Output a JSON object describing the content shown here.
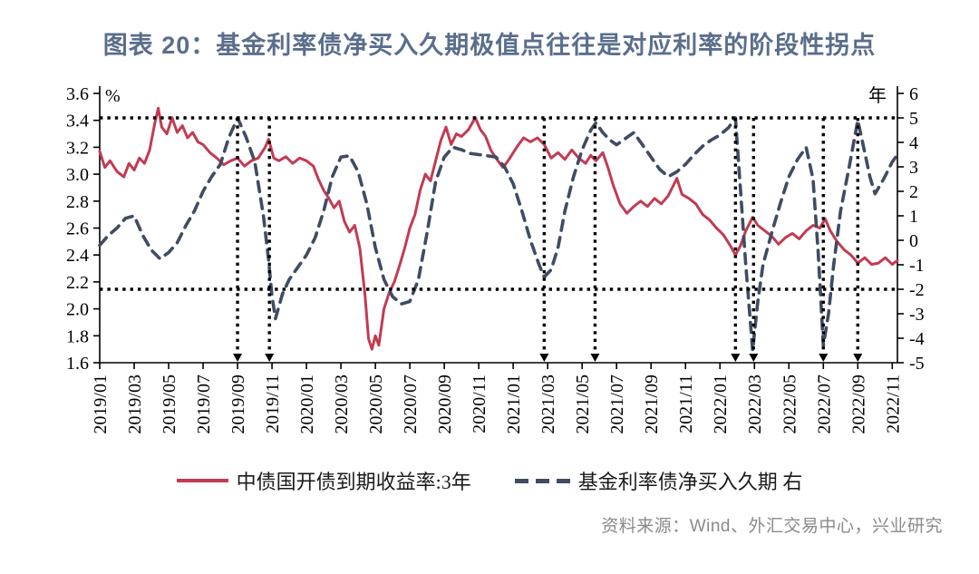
{
  "title": "图表 20：基金利率债净买入久期极值点往往是对应利率的阶段性拐点",
  "source": "资料来源：Wind、外汇交易中心，兴业研究",
  "colors": {
    "title": "#5a6e8c",
    "red_line": "#c23b52",
    "dashed_line": "#3f4c63",
    "dotted_black": "#000000",
    "axis": "#000000",
    "source_text": "#8a8a8a",
    "background": "#ffffff"
  },
  "legend": [
    {
      "label": "中债国开债到期收益率:3年",
      "style": "solid"
    },
    {
      "label": "基金利率债净买入久期 右",
      "style": "dashed"
    }
  ],
  "chart_data": {
    "type": "line",
    "left_axis": {
      "unit": "%",
      "min": 1.6,
      "max": 3.6,
      "step": 0.2,
      "ticks": [
        "3.6",
        "3.4",
        "3.2",
        "3.0",
        "2.8",
        "2.6",
        "2.4",
        "2.2",
        "2.0",
        "1.8",
        "1.6"
      ]
    },
    "right_axis": {
      "unit": "年",
      "min": -5,
      "max": 6,
      "step": 1,
      "ticks": [
        "6",
        "5",
        "4",
        "3",
        "2",
        "1",
        "0",
        "-1",
        "-2",
        "-3",
        "-4",
        "-5"
      ]
    },
    "x_tick_labels": [
      "2019/01",
      "2019/03",
      "2019/05",
      "2019/07",
      "2019/09",
      "2019/11",
      "2020/01",
      "2020/03",
      "2020/05",
      "2020/07",
      "2020/09",
      "2020/11",
      "2021/01",
      "2021/03",
      "2021/05",
      "2021/07",
      "2021/09",
      "2021/11",
      "2022/01",
      "2022/03",
      "2022/05",
      "2022/07",
      "2022/09",
      "2022/11"
    ],
    "x_tick_month_step": 2,
    "threshold_lines_right_axis": [
      5,
      -2
    ],
    "event_line_dates": [
      "2019/09",
      "2019/11",
      "2021/03",
      "2021/06",
      "2022/02",
      "2022/03",
      "2022/07",
      "2022/09"
    ],
    "event_line_months": [
      8.0,
      9.85,
      25.8,
      28.75,
      36.9,
      37.95,
      42.0,
      44.0
    ],
    "series": [
      {
        "name": "中债国开债到期收益率:3年",
        "axis": "left",
        "style": "solid",
        "color": "#c23b52",
        "points": [
          [
            0,
            3.17
          ],
          [
            0.3,
            3.05
          ],
          [
            0.6,
            3.1
          ],
          [
            1,
            3.02
          ],
          [
            1.4,
            2.98
          ],
          [
            1.7,
            3.08
          ],
          [
            2,
            3.03
          ],
          [
            2.3,
            3.12
          ],
          [
            2.6,
            3.08
          ],
          [
            2.9,
            3.18
          ],
          [
            3.2,
            3.38
          ],
          [
            3.4,
            3.49
          ],
          [
            3.6,
            3.35
          ],
          [
            3.9,
            3.3
          ],
          [
            4.2,
            3.42
          ],
          [
            4.5,
            3.31
          ],
          [
            4.8,
            3.36
          ],
          [
            5.1,
            3.27
          ],
          [
            5.4,
            3.31
          ],
          [
            5.7,
            3.24
          ],
          [
            6,
            3.22
          ],
          [
            6.4,
            3.16
          ],
          [
            6.8,
            3.12
          ],
          [
            7.2,
            3.07
          ],
          [
            7.6,
            3.1
          ],
          [
            8,
            3.12
          ],
          [
            8.4,
            3.06
          ],
          [
            8.8,
            3.1
          ],
          [
            9.2,
            3.12
          ],
          [
            9.6,
            3.2
          ],
          [
            9.8,
            3.26
          ],
          [
            10.1,
            3.12
          ],
          [
            10.4,
            3.1
          ],
          [
            10.8,
            3.13
          ],
          [
            11.2,
            3.08
          ],
          [
            11.6,
            3.12
          ],
          [
            12,
            3.1
          ],
          [
            12.4,
            3.06
          ],
          [
            12.7,
            2.96
          ],
          [
            13,
            2.88
          ],
          [
            13.3,
            2.82
          ],
          [
            13.6,
            2.75
          ],
          [
            13.9,
            2.8
          ],
          [
            14.2,
            2.65
          ],
          [
            14.5,
            2.57
          ],
          [
            14.8,
            2.62
          ],
          [
            15.1,
            2.45
          ],
          [
            15.4,
            2.1
          ],
          [
            15.6,
            1.78
          ],
          [
            15.8,
            1.7
          ],
          [
            16,
            1.8
          ],
          [
            16.2,
            1.73
          ],
          [
            16.5,
            2.0
          ],
          [
            16.8,
            2.12
          ],
          [
            17.1,
            2.2
          ],
          [
            17.4,
            2.32
          ],
          [
            17.7,
            2.45
          ],
          [
            18,
            2.6
          ],
          [
            18.3,
            2.7
          ],
          [
            18.6,
            2.88
          ],
          [
            18.9,
            3.0
          ],
          [
            19.2,
            2.95
          ],
          [
            19.5,
            3.1
          ],
          [
            19.8,
            3.25
          ],
          [
            20.1,
            3.35
          ],
          [
            20.4,
            3.22
          ],
          [
            20.7,
            3.3
          ],
          [
            21,
            3.28
          ],
          [
            21.4,
            3.33
          ],
          [
            21.8,
            3.42
          ],
          [
            22.1,
            3.33
          ],
          [
            22.4,
            3.28
          ],
          [
            22.7,
            3.18
          ],
          [
            23,
            3.12
          ],
          [
            23.4,
            3.05
          ],
          [
            23.7,
            3.1
          ],
          [
            24.2,
            3.2
          ],
          [
            24.6,
            3.27
          ],
          [
            25,
            3.24
          ],
          [
            25.4,
            3.27
          ],
          [
            25.8,
            3.22
          ],
          [
            26.2,
            3.12
          ],
          [
            26.6,
            3.16
          ],
          [
            27,
            3.11
          ],
          [
            27.4,
            3.18
          ],
          [
            27.8,
            3.12
          ],
          [
            28.2,
            3.08
          ],
          [
            28.5,
            3.14
          ],
          [
            28.8,
            3.1
          ],
          [
            29.2,
            3.16
          ],
          [
            29.5,
            3.05
          ],
          [
            29.8,
            2.92
          ],
          [
            30.2,
            2.78
          ],
          [
            30.6,
            2.71
          ],
          [
            31,
            2.76
          ],
          [
            31.4,
            2.8
          ],
          [
            31.8,
            2.76
          ],
          [
            32.2,
            2.82
          ],
          [
            32.6,
            2.78
          ],
          [
            33,
            2.84
          ],
          [
            33.5,
            2.97
          ],
          [
            33.8,
            2.85
          ],
          [
            34.2,
            2.82
          ],
          [
            34.6,
            2.78
          ],
          [
            35,
            2.7
          ],
          [
            35.4,
            2.66
          ],
          [
            35.8,
            2.6
          ],
          [
            36.2,
            2.55
          ],
          [
            36.6,
            2.47
          ],
          [
            36.9,
            2.4
          ],
          [
            37.2,
            2.47
          ],
          [
            37.5,
            2.58
          ],
          [
            37.9,
            2.68
          ],
          [
            38.2,
            2.62
          ],
          [
            38.6,
            2.58
          ],
          [
            39,
            2.54
          ],
          [
            39.4,
            2.48
          ],
          [
            39.8,
            2.53
          ],
          [
            40.2,
            2.56
          ],
          [
            40.6,
            2.52
          ],
          [
            41,
            2.58
          ],
          [
            41.4,
            2.62
          ],
          [
            41.8,
            2.6
          ],
          [
            42.1,
            2.67
          ],
          [
            42.4,
            2.58
          ],
          [
            42.8,
            2.5
          ],
          [
            43.2,
            2.44
          ],
          [
            43.6,
            2.4
          ],
          [
            44,
            2.34
          ],
          [
            44.4,
            2.38
          ],
          [
            44.8,
            2.33
          ],
          [
            45.2,
            2.34
          ],
          [
            45.6,
            2.38
          ],
          [
            46,
            2.33
          ],
          [
            46.3,
            2.36
          ]
        ]
      },
      {
        "name": "基金利率债净买入久期 右",
        "axis": "right",
        "style": "dashed",
        "color": "#3f4c63",
        "points": [
          [
            0,
            -0.2
          ],
          [
            0.5,
            0.2
          ],
          [
            1,
            0.5
          ],
          [
            1.5,
            0.9
          ],
          [
            2,
            1.0
          ],
          [
            2.5,
            0.2
          ],
          [
            3,
            -0.4
          ],
          [
            3.5,
            -0.75
          ],
          [
            4,
            -0.5
          ],
          [
            4.5,
            -0.1
          ],
          [
            5,
            0.6
          ],
          [
            5.5,
            1.2
          ],
          [
            6,
            2.0
          ],
          [
            6.5,
            2.6
          ],
          [
            7,
            3.1
          ],
          [
            7.5,
            4.2
          ],
          [
            8,
            5.0
          ],
          [
            8.5,
            4.2
          ],
          [
            9,
            3.2
          ],
          [
            9.5,
            1.0
          ],
          [
            9.8,
            -0.8
          ],
          [
            10,
            -2.3
          ],
          [
            10.2,
            -3.2
          ],
          [
            10.6,
            -2.2
          ],
          [
            11,
            -1.6
          ],
          [
            11.5,
            -1.1
          ],
          [
            12,
            -0.6
          ],
          [
            12.5,
            0.1
          ],
          [
            13,
            1.2
          ],
          [
            13.5,
            2.6
          ],
          [
            14,
            3.4
          ],
          [
            14.5,
            3.45
          ],
          [
            15,
            2.8
          ],
          [
            15.5,
            1.5
          ],
          [
            16,
            -0.3
          ],
          [
            16.5,
            -1.6
          ],
          [
            17,
            -2.3
          ],
          [
            17.5,
            -2.6
          ],
          [
            18,
            -2.5
          ],
          [
            18.5,
            -1.6
          ],
          [
            19,
            0.3
          ],
          [
            19.5,
            2.4
          ],
          [
            20,
            3.4
          ],
          [
            20.5,
            3.8
          ],
          [
            21,
            3.7
          ],
          [
            21.5,
            3.55
          ],
          [
            22,
            3.5
          ],
          [
            22.5,
            3.45
          ],
          [
            23,
            3.4
          ],
          [
            23.5,
            3.0
          ],
          [
            24,
            2.3
          ],
          [
            24.5,
            1.2
          ],
          [
            25,
            0.0
          ],
          [
            25.5,
            -1.0
          ],
          [
            25.8,
            -1.5
          ],
          [
            26.2,
            -1.2
          ],
          [
            26.6,
            -0.3
          ],
          [
            27,
            1.2
          ],
          [
            27.5,
            2.6
          ],
          [
            28,
            3.7
          ],
          [
            28.5,
            4.5
          ],
          [
            28.8,
            4.8
          ],
          [
            29.2,
            4.4
          ],
          [
            29.6,
            4.1
          ],
          [
            30,
            3.9
          ],
          [
            30.5,
            4.15
          ],
          [
            31,
            4.4
          ],
          [
            31.5,
            3.9
          ],
          [
            32,
            3.4
          ],
          [
            32.5,
            2.9
          ],
          [
            33,
            2.6
          ],
          [
            33.5,
            2.8
          ],
          [
            34,
            3.1
          ],
          [
            34.5,
            3.5
          ],
          [
            35,
            3.85
          ],
          [
            35.5,
            4.1
          ],
          [
            36,
            4.3
          ],
          [
            36.5,
            4.6
          ],
          [
            36.9,
            5.0
          ],
          [
            37.2,
            2.0
          ],
          [
            37.5,
            -1.0
          ],
          [
            37.9,
            -4.5
          ],
          [
            38.2,
            -2.5
          ],
          [
            38.5,
            -1.0
          ],
          [
            39,
            0.3
          ],
          [
            39.5,
            1.5
          ],
          [
            40,
            2.6
          ],
          [
            40.5,
            3.3
          ],
          [
            41,
            3.8
          ],
          [
            41.4,
            2.5
          ],
          [
            41.7,
            -0.5
          ],
          [
            42,
            -4.3
          ],
          [
            42.3,
            -3.0
          ],
          [
            42.6,
            -1.0
          ],
          [
            43,
            1.2
          ],
          [
            43.5,
            3.0
          ],
          [
            44,
            4.9
          ],
          [
            44.4,
            3.6
          ],
          [
            44.7,
            2.6
          ],
          [
            45,
            1.9
          ],
          [
            45.5,
            2.5
          ],
          [
            46,
            3.2
          ],
          [
            46.3,
            3.5
          ]
        ]
      }
    ]
  }
}
